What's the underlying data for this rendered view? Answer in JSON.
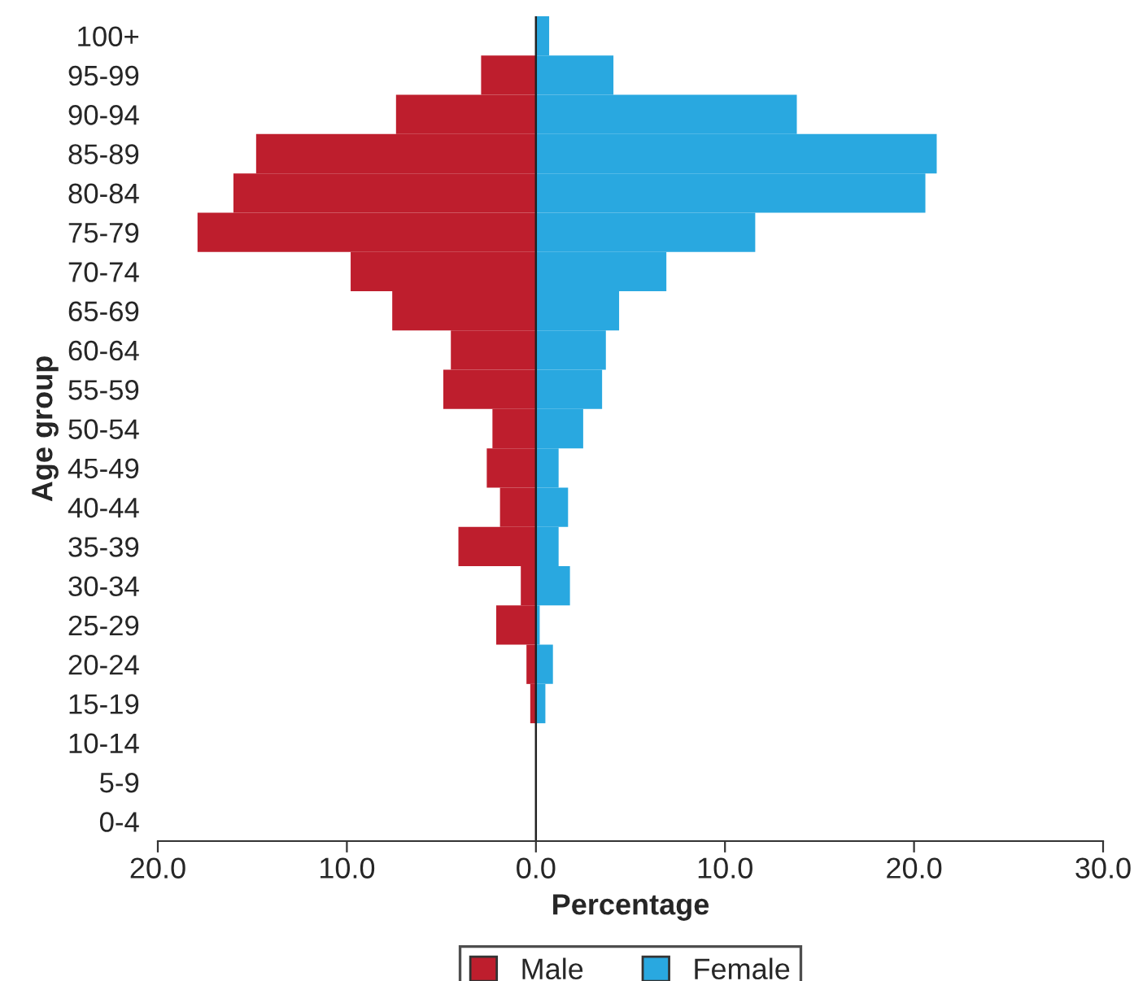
{
  "chart_data": {
    "type": "bar",
    "orientation": "horizontal",
    "stacked": true,
    "xlabel": "Percentage",
    "ylabel": "Age group",
    "categories": [
      "100+",
      "95-99",
      "90-94",
      "85-89",
      "80-84",
      "75-79",
      "70-74",
      "65-69",
      "60-64",
      "55-59",
      "50-54",
      "45-49",
      "40-44",
      "35-39",
      "30-34",
      "25-29",
      "20-24",
      "15-19",
      "10-14",
      "5-9",
      "0-4"
    ],
    "series": [
      {
        "name": "Male",
        "color": "#be1e2d",
        "values": [
          0,
          -2.9,
          -7.4,
          -14.8,
          -16.0,
          -17.9,
          -9.8,
          -7.6,
          -4.5,
          -4.9,
          -2.3,
          -2.6,
          -1.9,
          -4.1,
          -0.8,
          -2.1,
          -0.5,
          -0.3,
          0,
          0,
          0
        ]
      },
      {
        "name": "Female",
        "color": "#29a8e0",
        "values": [
          0.7,
          4.1,
          13.8,
          21.2,
          20.6,
          11.6,
          6.9,
          4.4,
          3.7,
          3.5,
          2.5,
          1.2,
          1.7,
          1.2,
          1.8,
          0.2,
          0.9,
          0.5,
          0,
          0,
          0
        ]
      }
    ],
    "xlim": [
      -20,
      30
    ],
    "xticks": [
      {
        "value": -20,
        "label": "20.0"
      },
      {
        "value": -10,
        "label": "10.0"
      },
      {
        "value": 0,
        "label": "0.0"
      },
      {
        "value": 10,
        "label": "10.0"
      },
      {
        "value": 20,
        "label": "20.0"
      },
      {
        "value": 30,
        "label": "30.0"
      }
    ],
    "ref_lines": [
      {
        "axis": "x",
        "value": 0,
        "color": "#222222"
      }
    ],
    "legend": "bottom",
    "grid": false
  }
}
